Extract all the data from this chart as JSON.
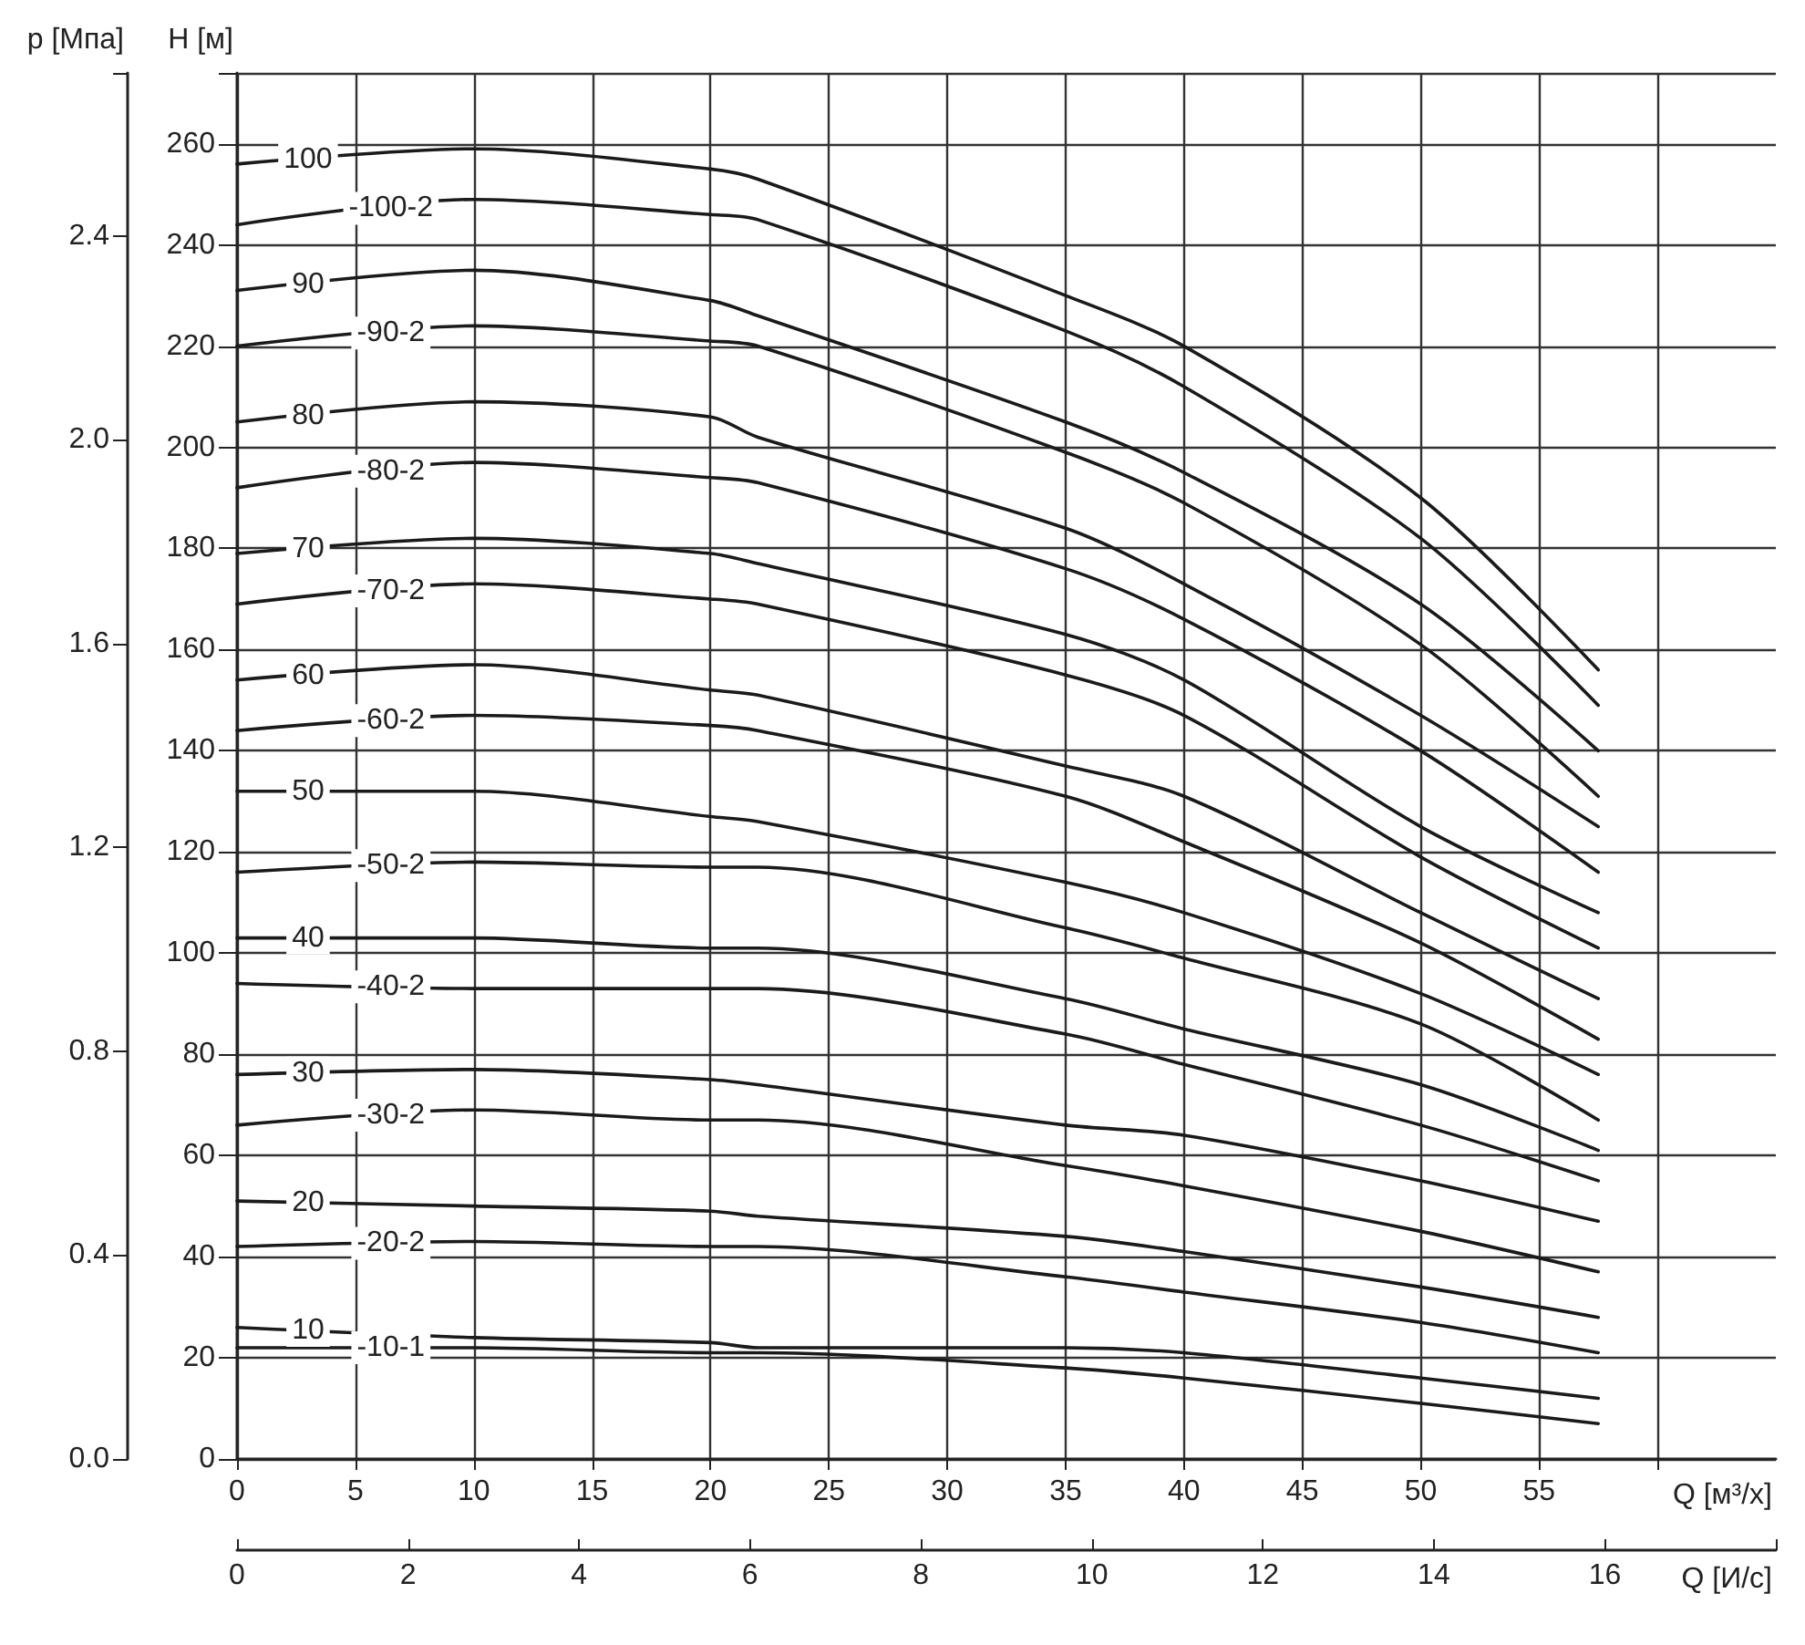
{
  "chart_data": {
    "type": "line",
    "xlabel": "Q [м³/х]",
    "ylabel": "H [м]",
    "y2label": "p [Мпа]",
    "x2label": "Q [И/с]",
    "x": [
      0,
      10,
      20,
      22,
      35,
      40,
      50,
      57.5
    ],
    "xlim": [
      0,
      65
    ],
    "xticks": [
      0,
      5,
      10,
      15,
      20,
      25,
      30,
      35,
      40,
      45,
      50,
      55,
      {
        "value": 60,
        "label": null
      }
    ],
    "x2lim": [
      0,
      18
    ],
    "x2ticks": [
      0,
      2,
      4,
      6,
      8,
      10,
      12,
      14,
      16
    ],
    "ylim": [
      0,
      274
    ],
    "yticks": [
      0,
      20,
      40,
      60,
      80,
      100,
      120,
      140,
      160,
      180,
      200,
      220,
      240,
      260
    ],
    "y2lim": [
      0,
      2.72
    ],
    "y2ticks": [
      {
        "value": 0,
        "label": "0.0"
      },
      0.4,
      0.8,
      1.2,
      1.6,
      {
        "value": 2,
        "label": "2.0"
      },
      2.4
    ],
    "grid": true,
    "line_style": "solid",
    "series": [
      {
        "name": "100",
        "color": "#1a1a1a",
        "values": [
          256,
          259,
          255,
          253,
          230,
          220,
          190,
          156
        ]
      },
      {
        "name": "-100-2",
        "color": "#1a1a1a",
        "values": [
          244,
          249,
          246,
          245,
          223,
          212,
          182,
          149
        ]
      },
      {
        "name": "90",
        "color": "#1a1a1a",
        "values": [
          231,
          235,
          229,
          226,
          205,
          195,
          169,
          140
        ]
      },
      {
        "name": "-90-2",
        "color": "#1a1a1a",
        "values": [
          220,
          224,
          221,
          220,
          199,
          189,
          161,
          131
        ]
      },
      {
        "name": "80",
        "color": "#1a1a1a",
        "values": [
          205,
          209,
          206,
          202,
          184,
          173,
          147,
          125
        ]
      },
      {
        "name": "-80-2",
        "color": "#1a1a1a",
        "values": [
          192,
          197,
          194,
          193,
          176,
          166,
          140,
          116
        ]
      },
      {
        "name": "70",
        "color": "#1a1a1a",
        "values": [
          179,
          182,
          179,
          177,
          163,
          154,
          125,
          108
        ]
      },
      {
        "name": "-70-2",
        "color": "#1a1a1a",
        "values": [
          169,
          173,
          170,
          169,
          155,
          147,
          119,
          101
        ]
      },
      {
        "name": "60",
        "color": "#1a1a1a",
        "values": [
          154,
          157,
          152,
          151,
          137,
          131,
          108,
          91
        ]
      },
      {
        "name": "-60-2",
        "color": "#1a1a1a",
        "values": [
          144,
          147,
          145,
          144,
          131,
          122,
          102,
          83
        ]
      },
      {
        "name": "50",
        "color": "#1a1a1a",
        "values": [
          132,
          132,
          127,
          126,
          114,
          108,
          92,
          76
        ]
      },
      {
        "name": "-50-2",
        "color": "#1a1a1a",
        "values": [
          116,
          118,
          117,
          117,
          105,
          99,
          86,
          67
        ]
      },
      {
        "name": "40",
        "color": "#1a1a1a",
        "values": [
          103,
          103,
          101,
          101,
          91,
          85,
          74,
          61
        ]
      },
      {
        "name": "-40-2",
        "color": "#1a1a1a",
        "values": [
          94,
          93,
          93,
          93,
          84,
          78,
          66,
          55
        ]
      },
      {
        "name": "30",
        "color": "#1a1a1a",
        "values": [
          76,
          77,
          75,
          74,
          66,
          64,
          55,
          47
        ]
      },
      {
        "name": "-30-2",
        "color": "#1a1a1a",
        "values": [
          66,
          69,
          67,
          67,
          58,
          54,
          45,
          37
        ]
      },
      {
        "name": "20",
        "color": "#1a1a1a",
        "values": [
          51,
          50,
          49,
          48,
          44,
          41,
          34,
          28
        ]
      },
      {
        "name": "-20-2",
        "color": "#1a1a1a",
        "values": [
          42,
          43,
          42,
          42,
          36,
          33,
          27,
          21
        ]
      },
      {
        "name": "10",
        "color": "#1a1a1a",
        "values": [
          26,
          24,
          23,
          22,
          22,
          21,
          16,
          12
        ]
      },
      {
        "name": "-10-1",
        "color": "#1a1a1a",
        "values": [
          22,
          22,
          21,
          21,
          18,
          16,
          11,
          7
        ]
      }
    ]
  }
}
